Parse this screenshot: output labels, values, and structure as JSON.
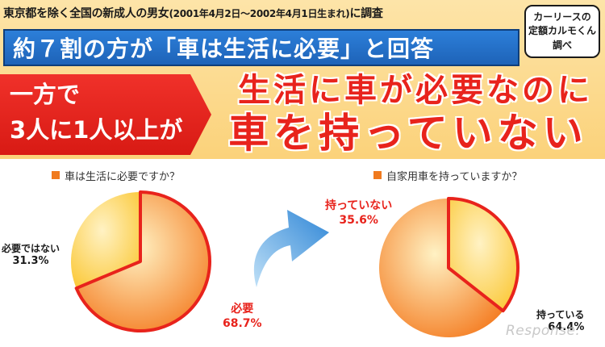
{
  "header": {
    "survey_main": "東京都を除く全国の新成人の男女",
    "survey_paren": "(2001年4月2日〜2002年4月1日生まれ)",
    "survey_end": "に調査",
    "badge_line1": "カーリースの",
    "badge_line2": "定額カルモくん",
    "badge_line3": "調べ",
    "headline": "約７割の方が「車は生活に必要」と回答",
    "sub_line1": "一方で",
    "sub_line2": "3人に1人以上が",
    "emph_line1": "生活に車が必要なのに",
    "emph_line2": "車を持っていない"
  },
  "colors": {
    "band": "#fbd27a",
    "banner_blue": "#1e63b8",
    "accent_red": "#e8231c",
    "slice_orange": "#f47b20",
    "slice_yellow": "#fbc93a"
  },
  "icons": {
    "flow": "curved-arrow-icon"
  },
  "chart_data": [
    {
      "type": "pie",
      "title": "車は生活に必要ですか？",
      "slices": [
        {
          "name": "必要",
          "value": 68.7,
          "label": "68.7%",
          "color": "#f47b20",
          "highlight": true
        },
        {
          "name": "必要ではない",
          "value": 31.3,
          "label": "31.3%",
          "color": "#fbc93a",
          "highlight": false
        }
      ]
    },
    {
      "type": "pie",
      "title": "自家用車を持っていますか？",
      "slices": [
        {
          "name": "持っていない",
          "value": 35.6,
          "label": "35.6%",
          "color": "#fbc93a",
          "highlight": true
        },
        {
          "name": "持っている",
          "value": 64.4,
          "label": "64.4%",
          "color": "#f47b20",
          "highlight": false
        }
      ]
    }
  ],
  "watermark": "Response."
}
